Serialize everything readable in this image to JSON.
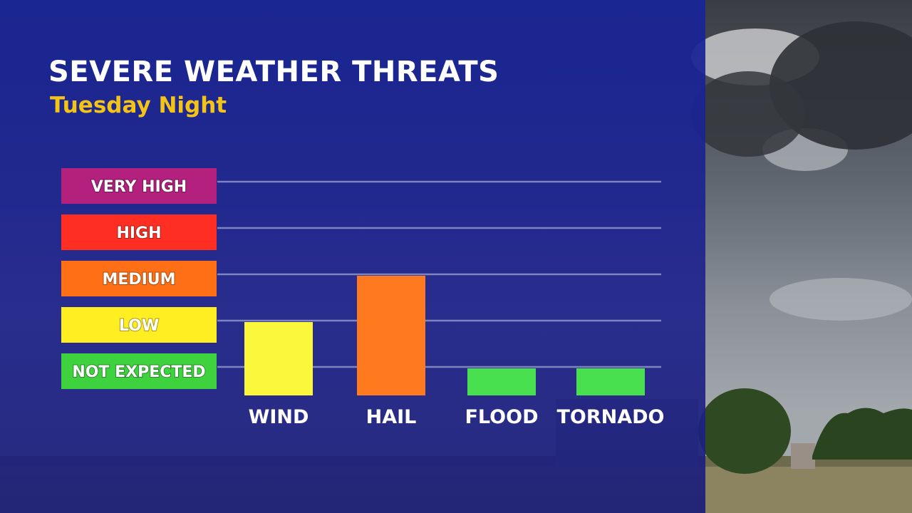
{
  "title": "SEVERE WEATHER THREATS",
  "subtitle": "Tuesday Night",
  "chart_data": {
    "type": "bar",
    "title": "SEVERE WEATHER THREATS",
    "subtitle": "Tuesday Night",
    "levels": [
      "NOT EXPECTED",
      "LOW",
      "MEDIUM",
      "HIGH",
      "VERY HIGH"
    ],
    "level_colors": [
      "#3fd23f",
      "#ffee22",
      "#ff7016",
      "#ff2e22",
      "#b3207e"
    ],
    "categories": [
      "WIND",
      "HAIL",
      "FLOOD",
      "TORNADO"
    ],
    "values": [
      1,
      2,
      0,
      0
    ],
    "value_labels": [
      "LOW",
      "MEDIUM",
      "NOT EXPECTED",
      "NOT EXPECTED"
    ],
    "bar_colors": [
      "#fbf73a",
      "#ff7a1f",
      "#48e04e",
      "#48e04e"
    ],
    "ylim": [
      0,
      4
    ],
    "grid": true,
    "legend": "left"
  }
}
